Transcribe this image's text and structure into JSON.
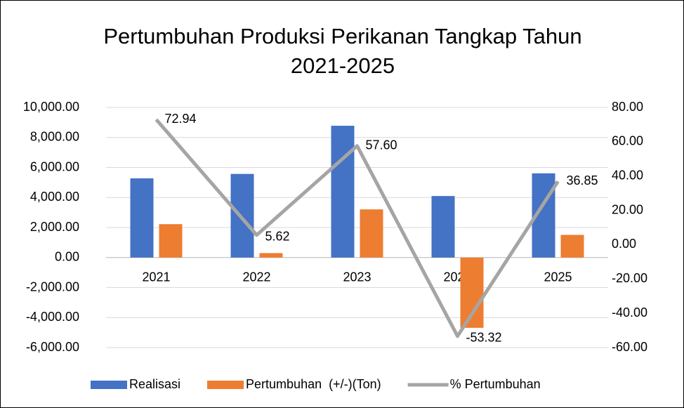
{
  "chart_data": {
    "type": "bar",
    "title": "Pertumbuhan Produksi Perikanan Tangkap Tahun 2021-2025",
    "categories": [
      "2021",
      "2022",
      "2023",
      "2024",
      "2025"
    ],
    "series": [
      {
        "name": "Realisasi",
        "type": "bar",
        "color": "#4472c4",
        "values": [
          5275,
          5571,
          8780,
          4099,
          5609
        ]
      },
      {
        "name": "Pertumbuhan  (+/-)(Ton)",
        "type": "bar",
        "color": "#ed7d31",
        "values": [
          2225,
          296,
          3209,
          -4681,
          1510
        ]
      },
      {
        "name": "% Pertumbuhan",
        "type": "line",
        "axis": "y2",
        "color": "#a5a5a5",
        "values": [
          72.94,
          5.62,
          57.6,
          -53.32,
          36.85
        ],
        "value_labels": [
          "72.94",
          "5.62",
          "57.60",
          "-53.32",
          "36.85"
        ]
      }
    ],
    "ylim": [
      -6000,
      10000
    ],
    "yticks": [
      {
        "value": -6000,
        "label": "-6,000.00"
      },
      {
        "value": -4000,
        "label": "-4,000.00"
      },
      {
        "value": -2000,
        "label": "-2,000.00"
      },
      {
        "value": 0,
        "label": "0.00"
      },
      {
        "value": 2000,
        "label": "2,000.00"
      },
      {
        "value": 4000,
        "label": "4,000.00"
      },
      {
        "value": 6000,
        "label": "6,000.00"
      },
      {
        "value": 8000,
        "label": "8,000.00"
      },
      {
        "value": 10000,
        "label": "10,000.00"
      }
    ],
    "y2lim": [
      -60,
      80
    ],
    "y2ticks": [
      {
        "value": -60,
        "label": "-60.00"
      },
      {
        "value": -40,
        "label": "-40.00"
      },
      {
        "value": -20,
        "label": "-20.00"
      },
      {
        "value": 0,
        "label": "0.00"
      },
      {
        "value": 20,
        "label": "20.00"
      },
      {
        "value": 40,
        "label": "40.00"
      },
      {
        "value": 60,
        "label": "60.00"
      },
      {
        "value": 80,
        "label": "80.00"
      }
    ],
    "grid": true,
    "legend": "bottom"
  }
}
